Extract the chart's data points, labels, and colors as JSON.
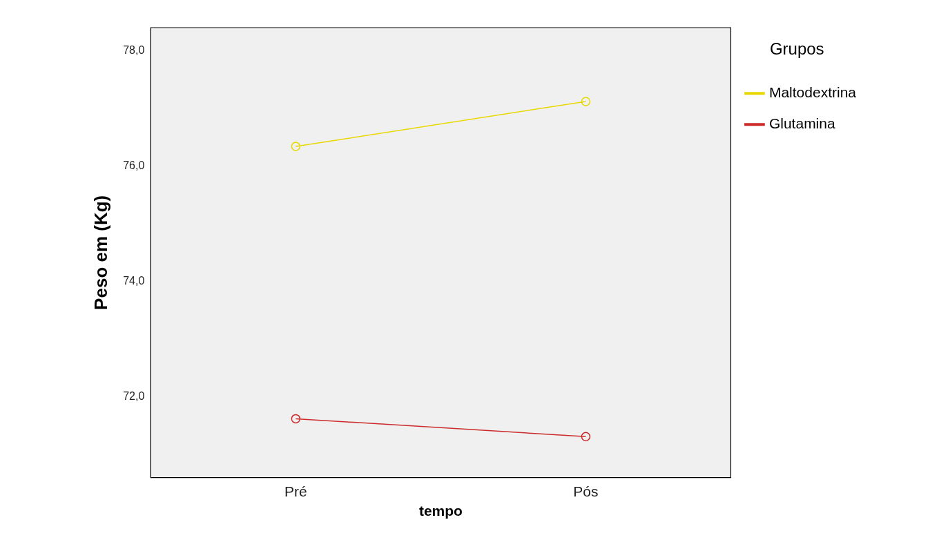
{
  "chart_data": {
    "type": "line",
    "xlabel": "tempo",
    "ylabel": "Peso em (Kg)",
    "legend_title": "Grupos",
    "categories": [
      "Pré",
      "Pós"
    ],
    "series": [
      {
        "name": "Maltodextrina",
        "color": "#e8d800",
        "values": [
          76.34,
          77.12
        ]
      },
      {
        "name": "Glutamina",
        "color": "#cc2a2a",
        "values": [
          71.62,
          71.31
        ]
      }
    ],
    "ylim": [
      70.6,
      78.4
    ],
    "yticks": [
      {
        "value": 72,
        "label": "72,0"
      },
      {
        "value": 74,
        "label": "74,0"
      },
      {
        "value": 76,
        "label": "76,0"
      },
      {
        "value": 78,
        "label": "78,0"
      }
    ],
    "grid": false,
    "legend": "top right",
    "marker": "circle",
    "line_style": "solid"
  }
}
